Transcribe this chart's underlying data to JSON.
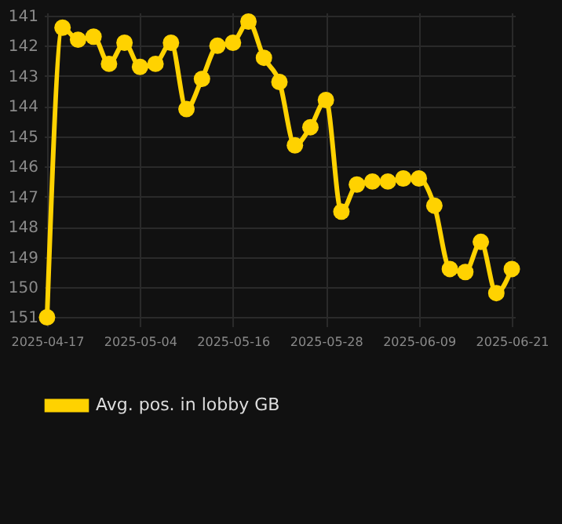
{
  "chart_data": {
    "type": "line",
    "categories": [
      "2025-04-17",
      null,
      null,
      null,
      null,
      null,
      "2025-05-04",
      null,
      null,
      null,
      null,
      null,
      "2025-05-16",
      null,
      null,
      null,
      null,
      null,
      "2025-05-28",
      null,
      null,
      null,
      null,
      null,
      "2025-06-09",
      null,
      null,
      null,
      null,
      null,
      "2025-06-21"
    ],
    "series": [
      {
        "name": "Avg. pos. in lobby GB",
        "color": "#ffd200",
        "values": [
          151.0,
          141.4,
          141.8,
          141.7,
          142.6,
          141.9,
          142.7,
          142.6,
          141.9,
          144.1,
          143.1,
          142.0,
          141.9,
          141.2,
          142.4,
          143.2,
          145.3,
          144.7,
          143.8,
          147.5,
          146.6,
          146.5,
          146.5,
          146.4,
          146.4,
          147.3,
          149.4,
          149.5,
          148.5,
          150.2,
          149.4
        ]
      }
    ],
    "ylim": [
      151.3,
      140.9
    ],
    "yticks": [
      141,
      142,
      143,
      144,
      145,
      146,
      147,
      148,
      149,
      150,
      151
    ],
    "grid": true,
    "legend": "bottom",
    "marker": "circle",
    "line_style": "solid"
  }
}
